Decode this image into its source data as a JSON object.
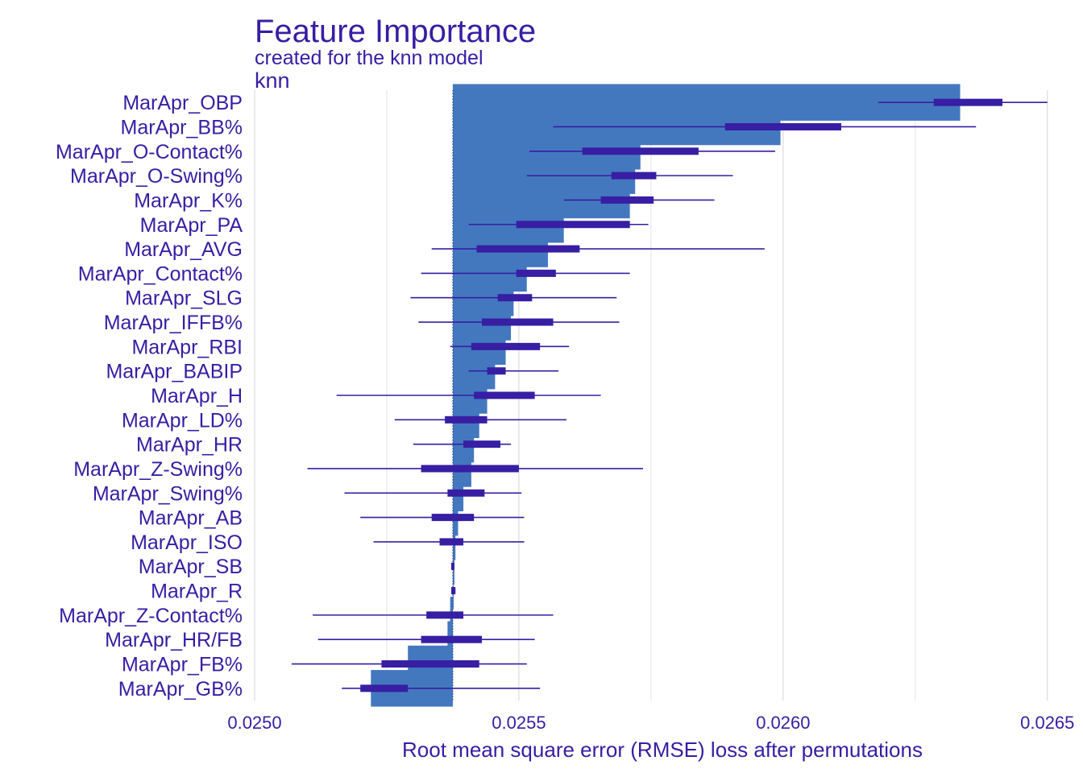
{
  "chart_data": {
    "type": "bar",
    "title": "Feature Importance",
    "subtitle": "created for the knn model",
    "facet_label": "knn",
    "xlabel": "Root mean square error (RMSE) loss after permutations",
    "baseline": 0.025375,
    "xlim": [
      0.025,
      0.02654
    ],
    "xticks": [
      0.025,
      0.0255,
      0.026,
      0.0265
    ],
    "xtick_labels": [
      "0.0250",
      "0.0255",
      "0.0260",
      "0.0265"
    ],
    "grid": true,
    "colors": {
      "bar": "#4378bf",
      "box": "#371ea3",
      "text": "#371ea3",
      "grid": "#dcdcdc"
    },
    "features": [
      {
        "name": "MarApr_OBP",
        "value": 0.026335,
        "min": 0.02618,
        "q1": 0.026285,
        "q3": 0.026415,
        "max": 0.0265
      },
      {
        "name": "MarApr_BB%",
        "value": 0.025995,
        "min": 0.025565,
        "q1": 0.02589,
        "q3": 0.02611,
        "max": 0.026365
      },
      {
        "name": "MarApr_O-Contact%",
        "value": 0.02573,
        "min": 0.02552,
        "q1": 0.02562,
        "q3": 0.02584,
        "max": 0.025985
      },
      {
        "name": "MarApr_O-Swing%",
        "value": 0.02572,
        "min": 0.025515,
        "q1": 0.025675,
        "q3": 0.02576,
        "max": 0.025905
      },
      {
        "name": "MarApr_K%",
        "value": 0.02571,
        "min": 0.025585,
        "q1": 0.025655,
        "q3": 0.025755,
        "max": 0.02587
      },
      {
        "name": "MarApr_PA",
        "value": 0.025585,
        "min": 0.025405,
        "q1": 0.025495,
        "q3": 0.02571,
        "max": 0.025745
      },
      {
        "name": "MarApr_AVG",
        "value": 0.025555,
        "min": 0.025335,
        "q1": 0.02542,
        "q3": 0.025615,
        "max": 0.025965
      },
      {
        "name": "MarApr_Contact%",
        "value": 0.025515,
        "min": 0.025315,
        "q1": 0.025495,
        "q3": 0.02557,
        "max": 0.02571
      },
      {
        "name": "MarApr_SLG",
        "value": 0.02549,
        "min": 0.025295,
        "q1": 0.02546,
        "q3": 0.025525,
        "max": 0.025685
      },
      {
        "name": "MarApr_IFFB%",
        "value": 0.025485,
        "min": 0.02531,
        "q1": 0.02543,
        "q3": 0.025565,
        "max": 0.02569
      },
      {
        "name": "MarApr_RBI",
        "value": 0.025475,
        "min": 0.02537,
        "q1": 0.02541,
        "q3": 0.02554,
        "max": 0.025595
      },
      {
        "name": "MarApr_BABIP",
        "value": 0.025455,
        "min": 0.025405,
        "q1": 0.02544,
        "q3": 0.025475,
        "max": 0.025575
      },
      {
        "name": "MarApr_H",
        "value": 0.02544,
        "min": 0.025155,
        "q1": 0.025415,
        "q3": 0.02553,
        "max": 0.025655
      },
      {
        "name": "MarApr_LD%",
        "value": 0.025425,
        "min": 0.025265,
        "q1": 0.02536,
        "q3": 0.02544,
        "max": 0.02559
      },
      {
        "name": "MarApr_HR",
        "value": 0.025415,
        "min": 0.0253,
        "q1": 0.025395,
        "q3": 0.025465,
        "max": 0.025485
      },
      {
        "name": "MarApr_Z-Swing%",
        "value": 0.02541,
        "min": 0.0251,
        "q1": 0.025315,
        "q3": 0.0255,
        "max": 0.025735
      },
      {
        "name": "MarApr_Swing%",
        "value": 0.025395,
        "min": 0.02517,
        "q1": 0.025365,
        "q3": 0.025435,
        "max": 0.025505
      },
      {
        "name": "MarApr_AB",
        "value": 0.025385,
        "min": 0.0252,
        "q1": 0.025335,
        "q3": 0.025415,
        "max": 0.02551
      },
      {
        "name": "MarApr_ISO",
        "value": 0.02538,
        "min": 0.025225,
        "q1": 0.02535,
        "q3": 0.025395,
        "max": 0.02551
      },
      {
        "name": "MarApr_SB",
        "value": 0.025378,
        "min": 0.025372,
        "q1": 0.025372,
        "q3": 0.025378,
        "max": 0.025378
      },
      {
        "name": "MarApr_R",
        "value": 0.025376,
        "min": 0.025372,
        "q1": 0.025372,
        "q3": 0.02538,
        "max": 0.02538
      },
      {
        "name": "MarApr_Z-Contact%",
        "value": 0.02537,
        "min": 0.02511,
        "q1": 0.025325,
        "q3": 0.025395,
        "max": 0.025565
      },
      {
        "name": "MarApr_HR/FB",
        "value": 0.025365,
        "min": 0.02512,
        "q1": 0.025315,
        "q3": 0.02543,
        "max": 0.02553
      },
      {
        "name": "MarApr_FB%",
        "value": 0.02529,
        "min": 0.02507,
        "q1": 0.02524,
        "q3": 0.025425,
        "max": 0.025515
      },
      {
        "name": "MarApr_GB%",
        "value": 0.02522,
        "min": 0.025165,
        "q1": 0.0252,
        "q3": 0.02529,
        "max": 0.02554
      }
    ]
  }
}
